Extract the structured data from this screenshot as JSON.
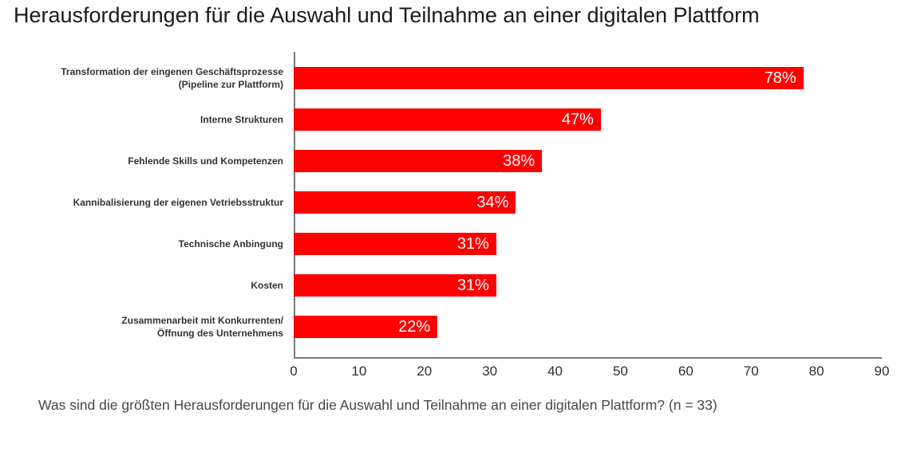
{
  "title": "Herausforderungen für die Auswahl und Teilnahme an einer digitalen Plattform",
  "caption": "Was sind die größten Herausforderungen für die Auswahl und Teilnahme an einer digitalen Plattform? (n = 33)",
  "chart_data": {
    "type": "bar",
    "orientation": "horizontal",
    "title": "Herausforderungen für die Auswahl und Teilnahme an einer digitalen Plattform",
    "categories": [
      "Transformation der eingenen Geschäftsprozesse\n(Pipeline zur Plattform)",
      "Interne Strukturen",
      "Fehlende Skills und Kompetenzen",
      "Kannibalisierung der eigenen Vetriebsstruktur",
      "Technische Anbingung",
      "Kosten",
      "Zusammenarbeit mit Konkurrenten/\nÖffnung des Unternehmens"
    ],
    "values": [
      78,
      47,
      38,
      34,
      31,
      31,
      22
    ],
    "value_labels": [
      "78%",
      "47%",
      "38%",
      "34%",
      "31%",
      "31%",
      "22%"
    ],
    "xlabel": "",
    "ylabel": "",
    "xlim": [
      0,
      90
    ],
    "x_ticks": [
      "0",
      "10",
      "20",
      "30",
      "40",
      "50",
      "60",
      "70",
      "80",
      "90"
    ],
    "grid": false,
    "legend": false,
    "colors": {
      "bar": "#fe0000",
      "value_label": "#ffffff",
      "axis": "#787878",
      "category_label": "#333333",
      "title": "#1a1a1a",
      "caption": "#474747"
    }
  }
}
